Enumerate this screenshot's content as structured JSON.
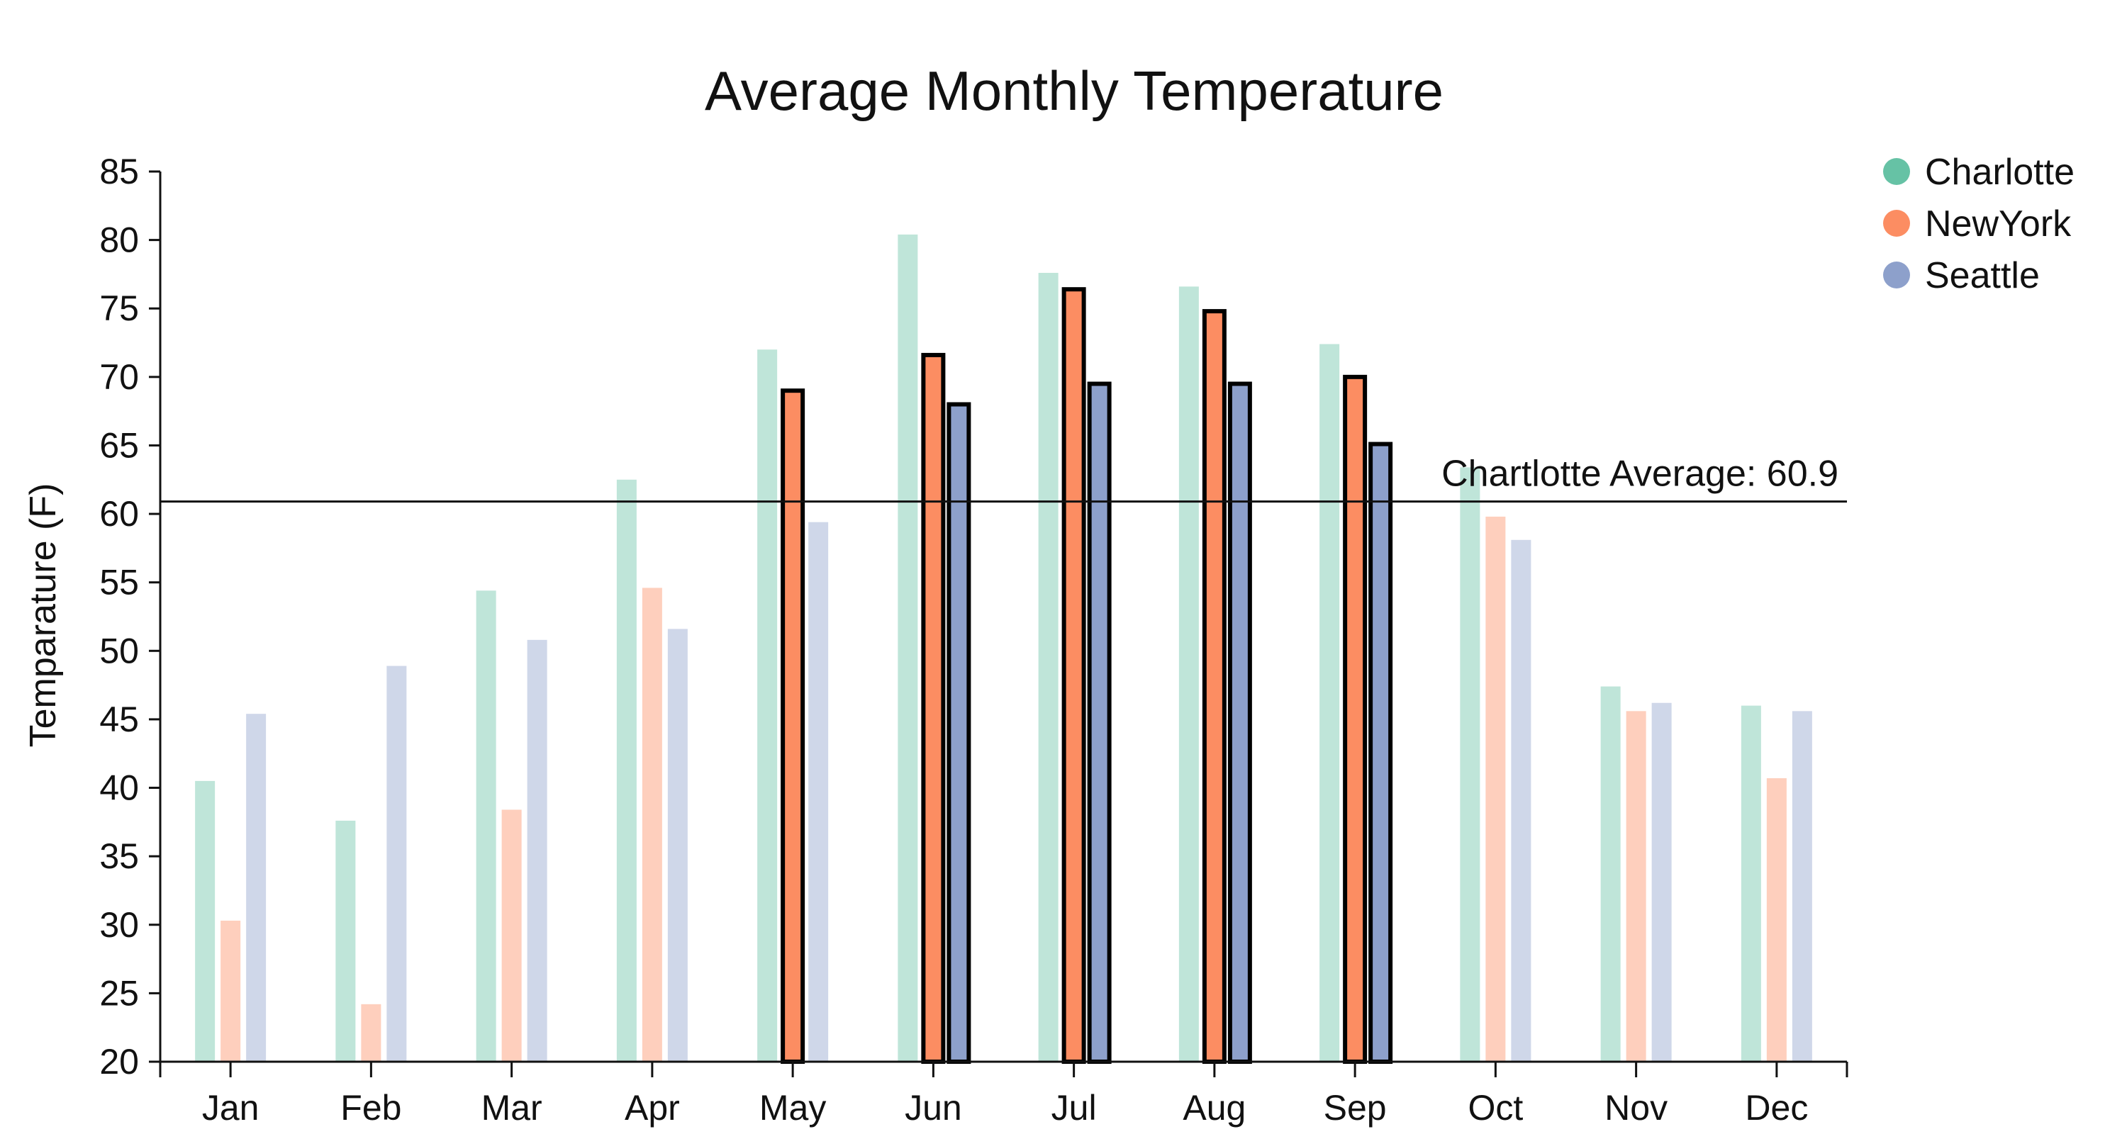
{
  "chart_data": {
    "type": "bar",
    "title": "Average Monthly Temperature",
    "xlabel": "",
    "ylabel": "Temparature (F)",
    "ylim": [
      20,
      85
    ],
    "yticks": [
      20,
      25,
      30,
      35,
      40,
      45,
      50,
      55,
      60,
      65,
      70,
      75,
      80,
      85
    ],
    "grid": false,
    "legend_position": "top-right",
    "categories": [
      "Jan",
      "Feb",
      "Mar",
      "Apr",
      "May",
      "Jun",
      "Jul",
      "Aug",
      "Sep",
      "Oct",
      "Nov",
      "Dec"
    ],
    "series": [
      {
        "name": "Charlotte",
        "color": "#66c2a5",
        "values": [
          40.5,
          37.6,
          54.4,
          62.5,
          72.0,
          80.4,
          77.6,
          76.6,
          72.4,
          63.4,
          47.4,
          46.0
        ]
      },
      {
        "name": "NewYork",
        "color": "#fc8d62",
        "values": [
          30.3,
          24.2,
          38.4,
          54.6,
          69.0,
          71.6,
          76.4,
          74.8,
          70.0,
          59.8,
          45.6,
          40.7
        ]
      },
      {
        "name": "Seattle",
        "color": "#8da0cb",
        "values": [
          45.4,
          48.9,
          50.8,
          51.6,
          59.4,
          68.0,
          69.5,
          69.5,
          65.1,
          58.1,
          46.2,
          45.6
        ]
      }
    ],
    "reference_line": {
      "label": "Chartlotte Average: 60.9",
      "value": 60.9
    },
    "highlight_rule": "bars above the Charlotte average are fully opaque with black outline; others faded"
  }
}
